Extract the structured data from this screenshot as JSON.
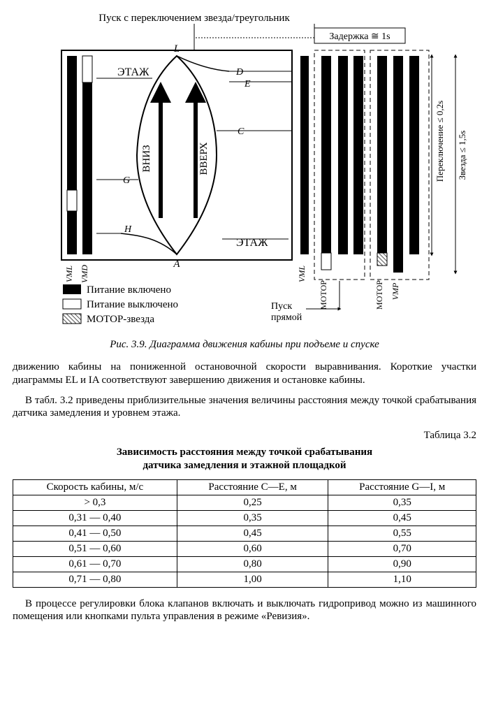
{
  "diagram": {
    "top_label": "Пуск с переключением звезда/треугольник",
    "delay_label": "Задержка ≅ 1s",
    "switch_label": "Переключение ≤ 0,2s",
    "star_label": "Звезда ≤ 1,5s",
    "floor_label": "ЭТАЖ",
    "down_label": "ВНИЗ",
    "up_label": "ВВЕРХ",
    "labels": {
      "L": "L",
      "D": "D",
      "E": "E",
      "C": "C",
      "G": "G",
      "H": "H",
      "A": "A"
    },
    "rails": {
      "VML": "VML",
      "VMD": "VMD",
      "VMP": "VMP",
      "MOTOR": "МОТОР"
    },
    "legend_on": "Питание включено",
    "legend_off": "Питание выключено",
    "legend_motor_star": "МОТОР-звезда",
    "direct_start": "Пуск прямой",
    "colors": {
      "stroke": "#000000",
      "fill_on": "#000000",
      "fill_off": "#ffffff",
      "hatch": "#555555",
      "text": "#000000"
    }
  },
  "caption": "Рис. 3.9. Диаграмма движения кабины при подъеме и спуске",
  "paragraphs": {
    "p1": "движению кабины на пониженной остановочной скорости выравнивания. Короткие участки диаграммы EL и IA соответствуют завершению движения и остановке кабины.",
    "p2": "В табл. 3.2 приведены приблизительные значения величины расстояния между точкой срабатывания датчика замедления и уровнем этажа.",
    "p3": "В процессе регулировки блока клапанов включать и выключать гидропривод можно из машинного помещения или кнопками пульта управления в режиме «Ревизия»."
  },
  "table": {
    "label": "Таблица 3.2",
    "title_line1": "Зависимость расстояния между точкой срабатывания",
    "title_line2": "датчика замедления и этажной площадкой",
    "columns": [
      "Скорость кабины, м/с",
      "Расстояние C—E, м",
      "Расстояние G—I, м"
    ],
    "rows": [
      [
        "> 0,3",
        "0,25",
        "0,35"
      ],
      [
        "0,31 — 0,40",
        "0,35",
        "0,45"
      ],
      [
        "0,41 — 0,50",
        "0,45",
        "0,55"
      ],
      [
        "0,51 — 0,60",
        "0,60",
        "0,70"
      ],
      [
        "0,61 — 0,70",
        "0,80",
        "0,90"
      ],
      [
        "0,71 — 0,80",
        "1,00",
        "1,10"
      ]
    ]
  }
}
